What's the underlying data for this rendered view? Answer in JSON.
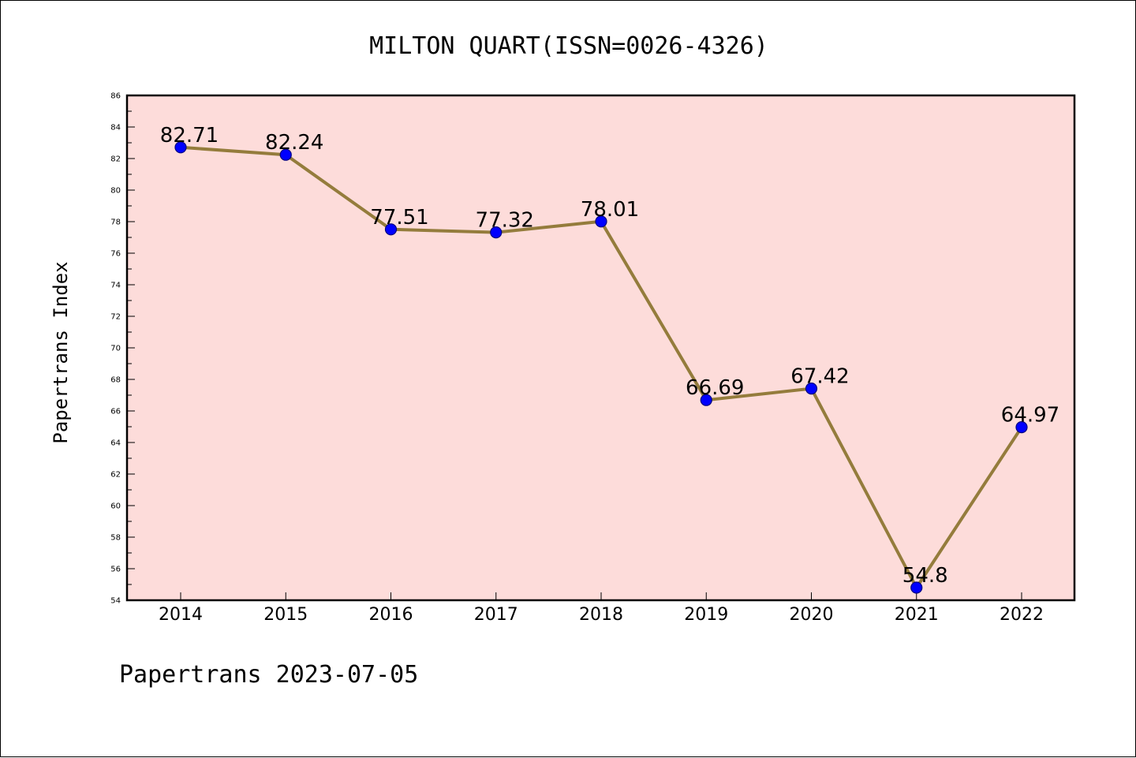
{
  "footer": {
    "text": "Papertrans 2023-07-05"
  },
  "colors": {
    "plot_background": "#fddcda",
    "line": "#947c3c",
    "marker_fill": "#0000ff",
    "marker_stroke": "#000080",
    "axis": "#000000"
  },
  "chart_data": {
    "type": "line",
    "title": "MILTON QUART(ISSN=0026-4326)",
    "xlabel": "",
    "ylabel": "Papertrans Index",
    "categories": [
      "2014",
      "2015",
      "2016",
      "2017",
      "2018",
      "2019",
      "2020",
      "2021",
      "2022"
    ],
    "series": [
      {
        "values": [
          82.71,
          82.24,
          77.51,
          77.32,
          78.01,
          66.69,
          67.42,
          54.8,
          64.97
        ],
        "labels": [
          "82.71",
          "82.24",
          "77.51",
          "77.32",
          "78.01",
          "66.69",
          "67.42",
          "54.8",
          "64.97"
        ]
      }
    ],
    "ylim": [
      54,
      86
    ],
    "yticks": [
      "54",
      "56",
      "58",
      "60",
      "62",
      "64",
      "66",
      "68",
      "70",
      "72",
      "74",
      "76",
      "78",
      "80",
      "82",
      "84",
      "86"
    ],
    "grid": false,
    "legend": "none"
  }
}
